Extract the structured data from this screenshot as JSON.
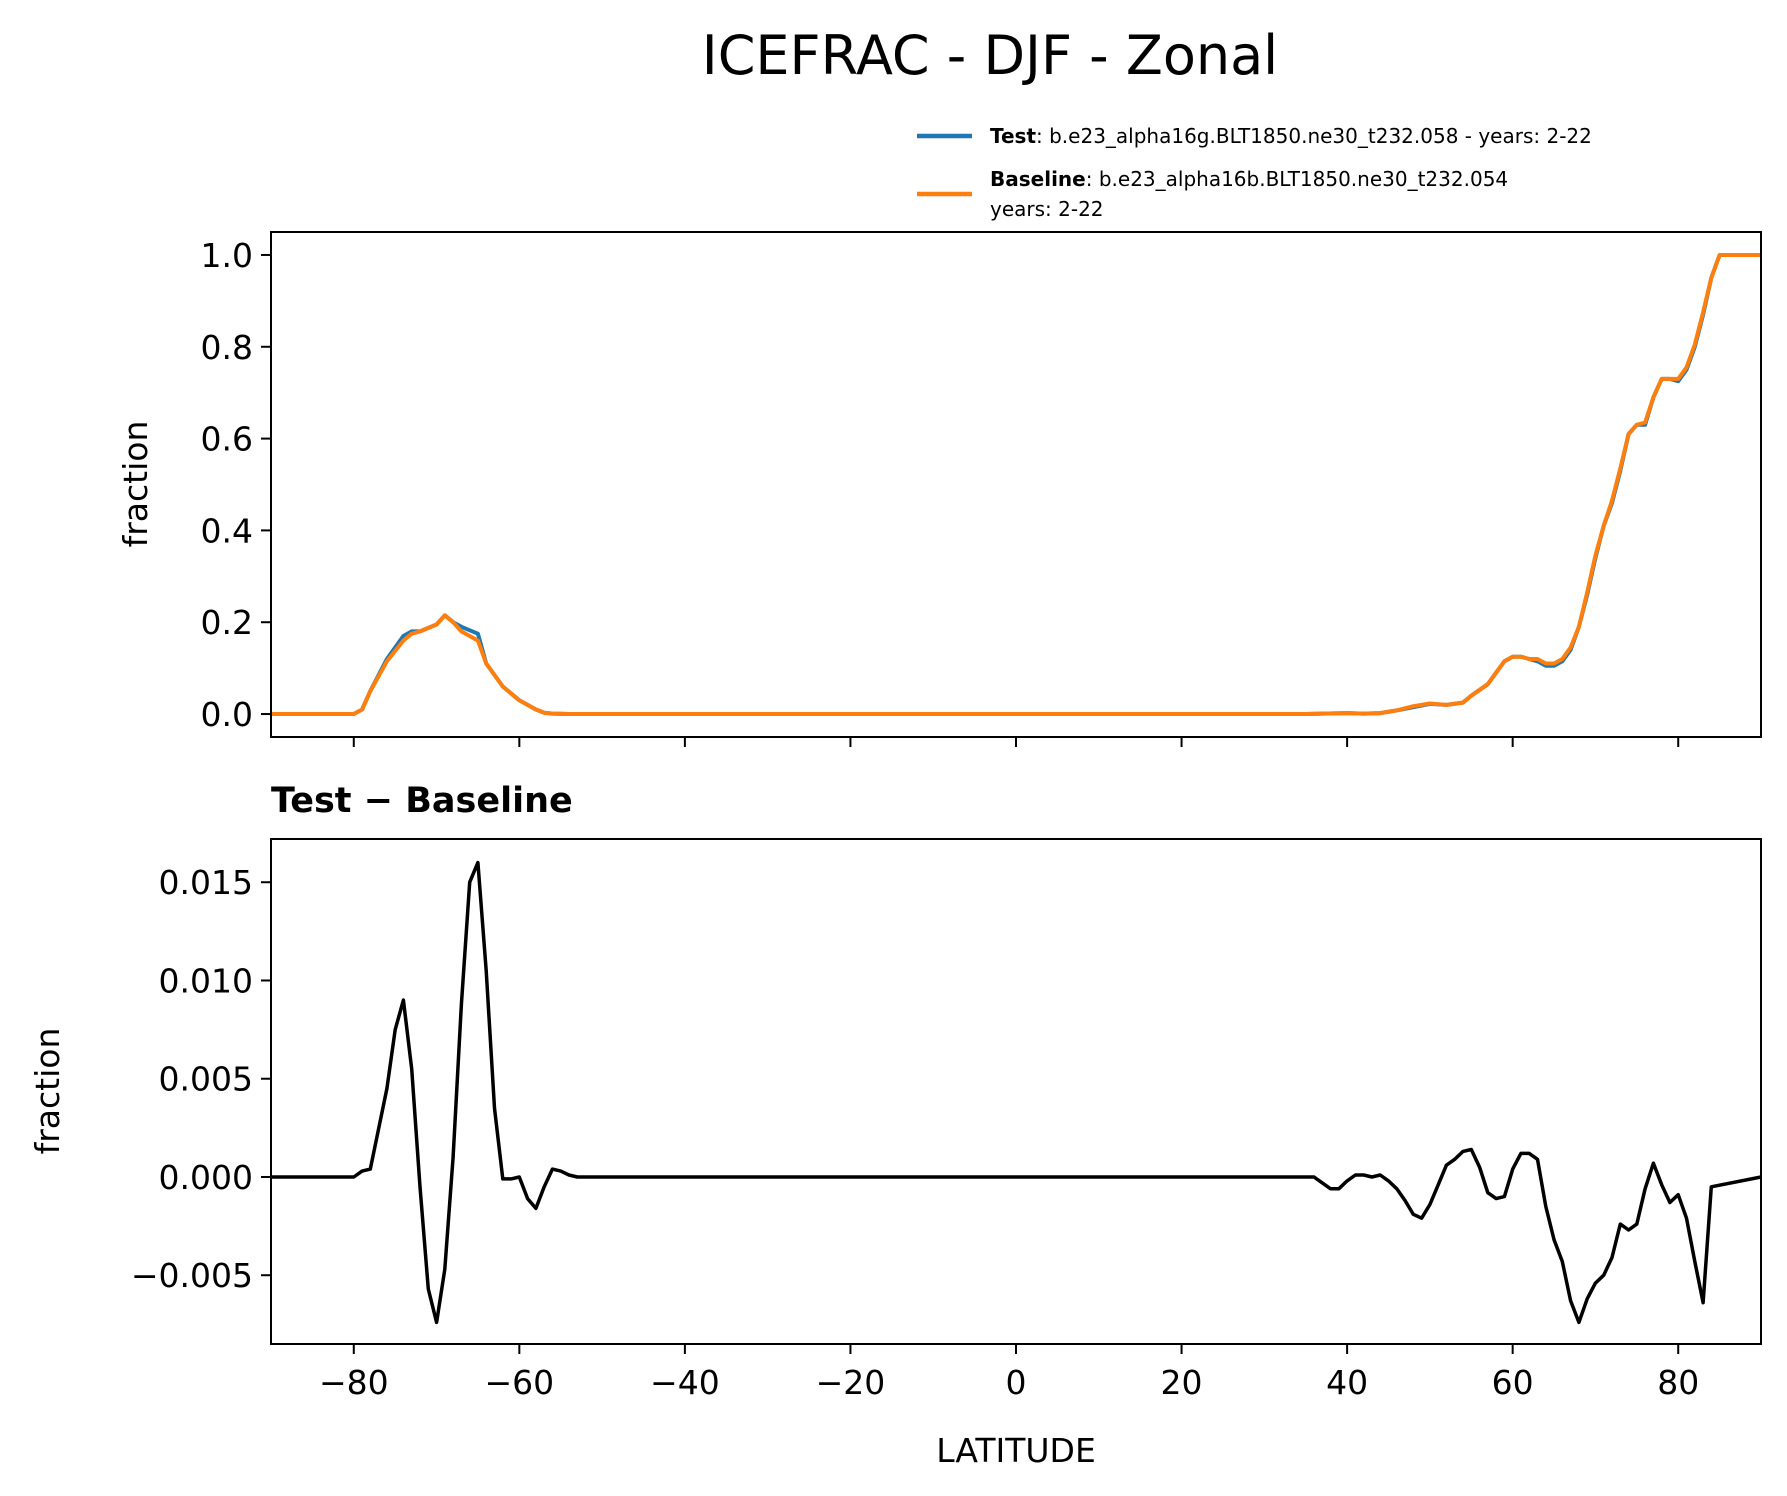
{
  "figure": {
    "title": "ICEFRAC - DJF - Zonal",
    "legend": [
      {
        "bold": "Test",
        "text": ": b.e23_alpha16g.BLT1850.ne30_t232.058 - years: 2-22",
        "text2": "",
        "color": "#1f77b4"
      },
      {
        "bold": "Baseline",
        "text": ": b.e23_alpha16b.BLT1850.ne30_t232.054",
        "text2": "years: 2-22",
        "color": "#ff7f0e"
      }
    ],
    "diff_title": "Test − Baseline",
    "xlabel": "LATITUDE"
  },
  "chart_data": [
    {
      "type": "line",
      "ylabel": "fraction",
      "xlim": [
        -90,
        90
      ],
      "ylim": [
        -0.05,
        1.05
      ],
      "yticks": [
        0.0,
        0.2,
        0.4,
        0.6,
        0.8,
        1.0
      ],
      "ytick_labels": [
        "0.0",
        "0.2",
        "0.4",
        "0.6",
        "0.8",
        "1.0"
      ],
      "xticks": [
        -80,
        -60,
        -40,
        -20,
        0,
        20,
        40,
        60,
        80
      ],
      "show_xtick_labels": false,
      "series": [
        {
          "name": "Test",
          "color": "#1f77b4",
          "x": [
            -90,
            -80,
            -79,
            -78,
            -76,
            -74,
            -73,
            -72,
            -70,
            -69,
            -68,
            -67,
            -65,
            -64,
            -62,
            -60,
            -58,
            -57,
            -56,
            -54,
            -40,
            0,
            35,
            37,
            40,
            42,
            44,
            46,
            48,
            50,
            52,
            54,
            55,
            57,
            58,
            59,
            60,
            61,
            62,
            63,
            64,
            65,
            66,
            67,
            68,
            69,
            70,
            71,
            72,
            73,
            74,
            75,
            76,
            77,
            78,
            79,
            80,
            81,
            82,
            83,
            84,
            85,
            90
          ],
          "y": [
            0.0,
            0.0,
            0.01,
            0.05,
            0.12,
            0.17,
            0.18,
            0.18,
            0.195,
            0.215,
            0.2,
            0.19,
            0.175,
            0.11,
            0.06,
            0.03,
            0.01,
            0.003,
            0.001,
            0.0,
            0.0,
            0.0,
            0.0,
            0.001,
            0.002,
            0.001,
            0.002,
            0.008,
            0.015,
            0.022,
            0.02,
            0.025,
            0.04,
            0.065,
            0.09,
            0.115,
            0.125,
            0.125,
            0.12,
            0.115,
            0.105,
            0.105,
            0.115,
            0.14,
            0.19,
            0.26,
            0.34,
            0.41,
            0.46,
            0.53,
            0.61,
            0.63,
            0.63,
            0.69,
            0.73,
            0.73,
            0.725,
            0.75,
            0.8,
            0.87,
            0.95,
            1.0,
            1.0
          ]
        },
        {
          "name": "Baseline",
          "color": "#ff7f0e",
          "x": [
            -90,
            -80,
            -79,
            -78,
            -76,
            -74,
            -73,
            -72,
            -70,
            -69,
            -68,
            -67,
            -65,
            -64,
            -62,
            -60,
            -58,
            -57,
            -56,
            -54,
            -40,
            0,
            35,
            37,
            40,
            42,
            44,
            46,
            48,
            50,
            52,
            54,
            55,
            57,
            58,
            59,
            60,
            61,
            62,
            63,
            64,
            65,
            66,
            67,
            68,
            69,
            70,
            71,
            72,
            73,
            74,
            75,
            76,
            77,
            78,
            79,
            80,
            81,
            82,
            83,
            84,
            85,
            90
          ],
          "y": [
            0.0,
            0.0,
            0.01,
            0.05,
            0.115,
            0.16,
            0.175,
            0.18,
            0.195,
            0.215,
            0.2,
            0.18,
            0.16,
            0.11,
            0.06,
            0.03,
            0.01,
            0.003,
            0.001,
            0.0,
            0.0,
            0.0,
            0.0,
            0.001,
            0.002,
            0.001,
            0.002,
            0.008,
            0.017,
            0.023,
            0.02,
            0.025,
            0.04,
            0.065,
            0.09,
            0.115,
            0.125,
            0.125,
            0.12,
            0.12,
            0.11,
            0.11,
            0.12,
            0.145,
            0.19,
            0.265,
            0.345,
            0.41,
            0.465,
            0.535,
            0.61,
            0.63,
            0.635,
            0.69,
            0.73,
            0.73,
            0.73,
            0.755,
            0.805,
            0.875,
            0.95,
            1.0,
            1.0
          ]
        }
      ]
    },
    {
      "type": "line",
      "title": "Test − Baseline",
      "ylabel": "fraction",
      "xlabel": "LATITUDE",
      "xlim": [
        -90,
        90
      ],
      "ylim": [
        -0.0085,
        0.0172
      ],
      "yticks": [
        -0.005,
        0.0,
        0.005,
        0.01,
        0.015
      ],
      "ytick_labels": [
        "−0.005",
        "0.000",
        "0.005",
        "0.010",
        "0.015"
      ],
      "xticks": [
        -80,
        -60,
        -40,
        -20,
        0,
        20,
        40,
        60,
        80
      ],
      "xtick_labels": [
        "−80",
        "−60",
        "−40",
        "−20",
        "0",
        "20",
        "40",
        "60",
        "80"
      ],
      "series": [
        {
          "color": "#000000",
          "x": [
            -90,
            -80,
            -79,
            -78,
            -76,
            -75,
            -74,
            -73,
            -72,
            -71,
            -70,
            -69,
            -68,
            -67,
            -66,
            -65,
            -64,
            -63,
            -62,
            -61,
            -60,
            -59,
            -58,
            -57,
            -56,
            -55,
            -54,
            -53,
            -40,
            0,
            36,
            37,
            38,
            39,
            40,
            41,
            42,
            43,
            44,
            45,
            46,
            47,
            48,
            49,
            50,
            51,
            52,
            53,
            54,
            55,
            56,
            57,
            58,
            59,
            60,
            61,
            62,
            63,
            64,
            65,
            66,
            67,
            68,
            69,
            70,
            71,
            72,
            73,
            74,
            75,
            76,
            77,
            78,
            79,
            80,
            81,
            82,
            83,
            84,
            90
          ],
          "y": [
            0.0,
            0.0,
            0.0003,
            0.0004,
            0.0045,
            0.0075,
            0.009,
            0.0055,
            -0.0005,
            -0.0057,
            -0.0074,
            -0.0047,
            0.001,
            0.0088,
            0.015,
            0.016,
            0.0105,
            0.0035,
            -0.0001,
            -0.0001,
            0.0,
            -0.0011,
            -0.0016,
            -0.0005,
            0.0004,
            0.0003,
            0.0001,
            0.0,
            0.0,
            0.0,
            0.0,
            -0.0003,
            -0.0006,
            -0.0006,
            -0.0002,
            0.0001,
            0.0001,
            0.0,
            0.0001,
            -0.0002,
            -0.0006,
            -0.0012,
            -0.0019,
            -0.0021,
            -0.0014,
            -0.0004,
            0.0006,
            0.0009,
            0.0013,
            0.0014,
            0.0005,
            -0.0008,
            -0.0011,
            -0.001,
            0.0004,
            0.0012,
            0.0012,
            0.0009,
            -0.0015,
            -0.0032,
            -0.0043,
            -0.0063,
            -0.0074,
            -0.0062,
            -0.0054,
            -0.005,
            -0.0041,
            -0.0024,
            -0.0027,
            -0.0024,
            -0.0006,
            0.0007,
            -0.0004,
            -0.0013,
            -0.0009,
            -0.0021,
            -0.0043,
            -0.0064,
            -0.0005,
            0.0
          ]
        }
      ]
    }
  ]
}
